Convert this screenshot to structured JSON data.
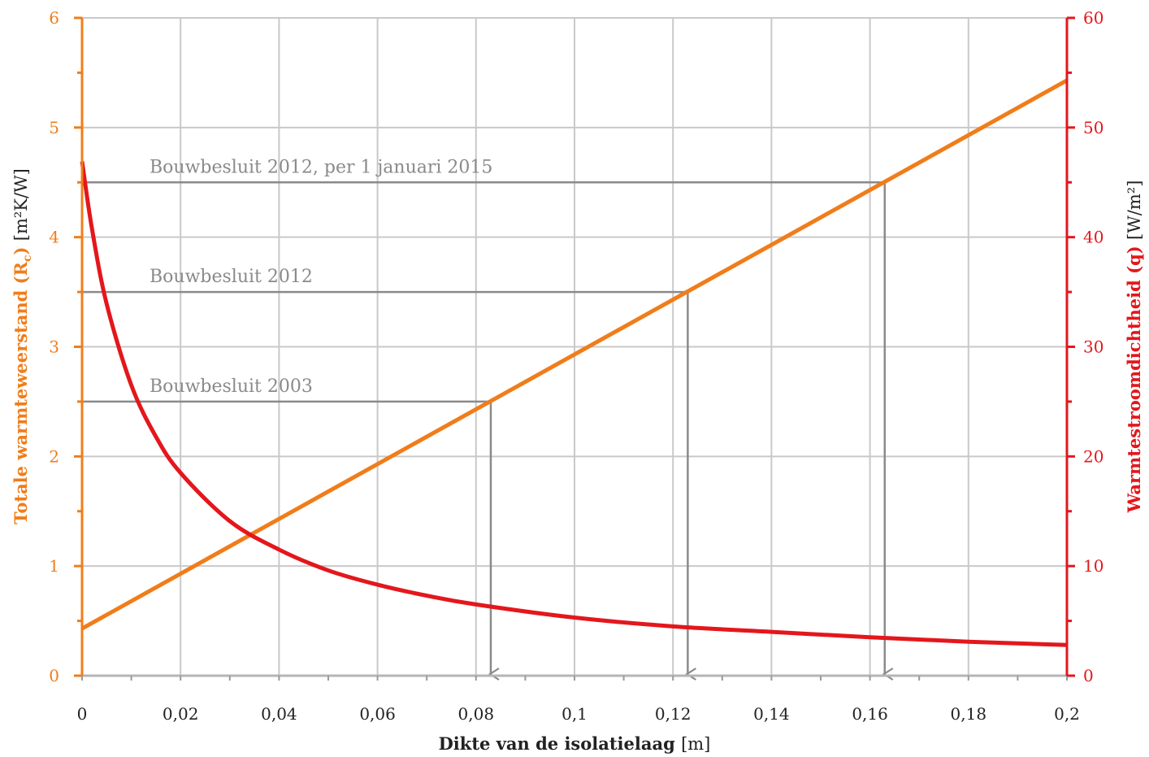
{
  "chart_data": {
    "type": "line",
    "x": {
      "label_bold": "Dikte van de isolatielaag",
      "label_unit": "[m]",
      "range": [
        0,
        0.2
      ],
      "ticks": [
        "0",
        "0,02",
        "0,04",
        "0,06",
        "0,08",
        "0,1",
        "0,12",
        "0,14",
        "0,16",
        "0,18",
        "0,2"
      ]
    },
    "y_left": {
      "label_bold": "Totale warmteweerstand (R",
      "label_sub": "c",
      "label_close": ")",
      "label_unit": "[m²K/W]",
      "range": [
        0,
        6
      ],
      "ticks": [
        "0",
        "1",
        "2",
        "3",
        "4",
        "5",
        "6"
      ],
      "color": "#f07d1a"
    },
    "y_right": {
      "label_bold": "Warmtestroomdichtheid (q)",
      "label_unit": "[W/m²]",
      "range": [
        0,
        60
      ],
      "ticks": [
        "0",
        "10",
        "20",
        "30",
        "40",
        "50",
        "60"
      ],
      "color": "#e3171c"
    },
    "series": [
      {
        "axis": "left",
        "color": "#f07d1a",
        "x": [
          0,
          0.2
        ],
        "y": [
          0.43,
          5.43
        ]
      },
      {
        "axis": "right",
        "color": "#e3171c",
        "x": [
          0,
          0.002,
          0.005,
          0.01,
          0.015,
          0.02,
          0.03,
          0.04,
          0.05,
          0.06,
          0.07,
          0.08,
          0.1,
          0.12,
          0.14,
          0.16,
          0.18,
          0.2
        ],
        "y": [
          46.9,
          40.8,
          33.9,
          26.5,
          21.8,
          18.5,
          14.1,
          11.5,
          9.6,
          8.3,
          7.3,
          6.5,
          5.3,
          4.5,
          4.0,
          3.5,
          3.1,
          2.8
        ]
      }
    ],
    "reference_lines": [
      {
        "label": "Bouwbesluit 2012, per 1 januari 2015",
        "rc": 4.5,
        "thickness": 0.163
      },
      {
        "label": "Bouwbesluit 2012",
        "rc": 3.5,
        "thickness": 0.123
      },
      {
        "label": "Bouwbesluit 2003",
        "rc": 2.5,
        "thickness": 0.083
      }
    ],
    "grid": true,
    "grid_color": "#c9c9c9",
    "reference_color": "#8a8a8a"
  }
}
